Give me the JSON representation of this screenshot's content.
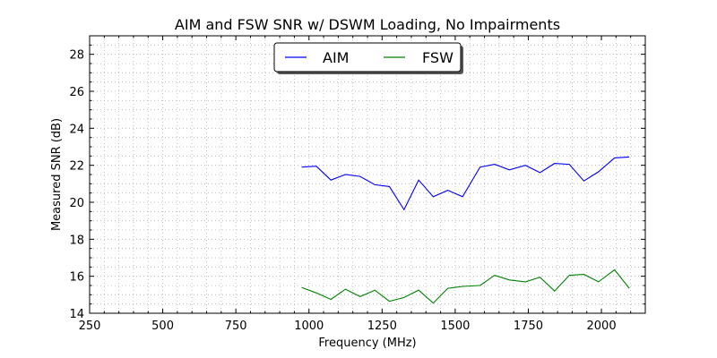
{
  "chart_data": {
    "type": "line",
    "title": "AIM and FSW SNR w/ DSWM Loading, No Impairments",
    "xlabel": "Frequency (MHz)",
    "ylabel": "Measured SNR (dB)",
    "xlim": [
      250,
      2150
    ],
    "ylim": [
      14,
      29
    ],
    "xticks": [
      250,
      500,
      750,
      1000,
      1250,
      1500,
      1750,
      2000
    ],
    "yticks": [
      14,
      16,
      18,
      20,
      22,
      24,
      26,
      28
    ],
    "grid": "dotted, major and minor",
    "legend_position": "top-center",
    "x": [
      975,
      1025,
      1075,
      1125,
      1175,
      1225,
      1275,
      1325,
      1375,
      1425,
      1475,
      1525,
      1585,
      1635,
      1685,
      1740,
      1790,
      1840,
      1890,
      1940,
      1990,
      2045,
      2095
    ],
    "series": [
      {
        "name": "AIM",
        "color": "#0000ff",
        "values": [
          21.9,
          21.95,
          21.2,
          21.5,
          21.4,
          20.95,
          20.85,
          19.6,
          21.2,
          20.3,
          20.65,
          20.3,
          21.9,
          22.05,
          21.75,
          22.0,
          21.6,
          22.1,
          22.05,
          21.15,
          21.65,
          22.4,
          22.45
        ]
      },
      {
        "name": "FSW",
        "color": "#008000",
        "values": [
          15.4,
          15.1,
          14.75,
          15.3,
          14.9,
          15.25,
          14.65,
          14.85,
          15.25,
          14.55,
          15.35,
          15.45,
          15.5,
          16.05,
          15.8,
          15.7,
          15.95,
          15.2,
          16.05,
          16.1,
          15.7,
          16.35,
          15.35
        ]
      }
    ]
  }
}
